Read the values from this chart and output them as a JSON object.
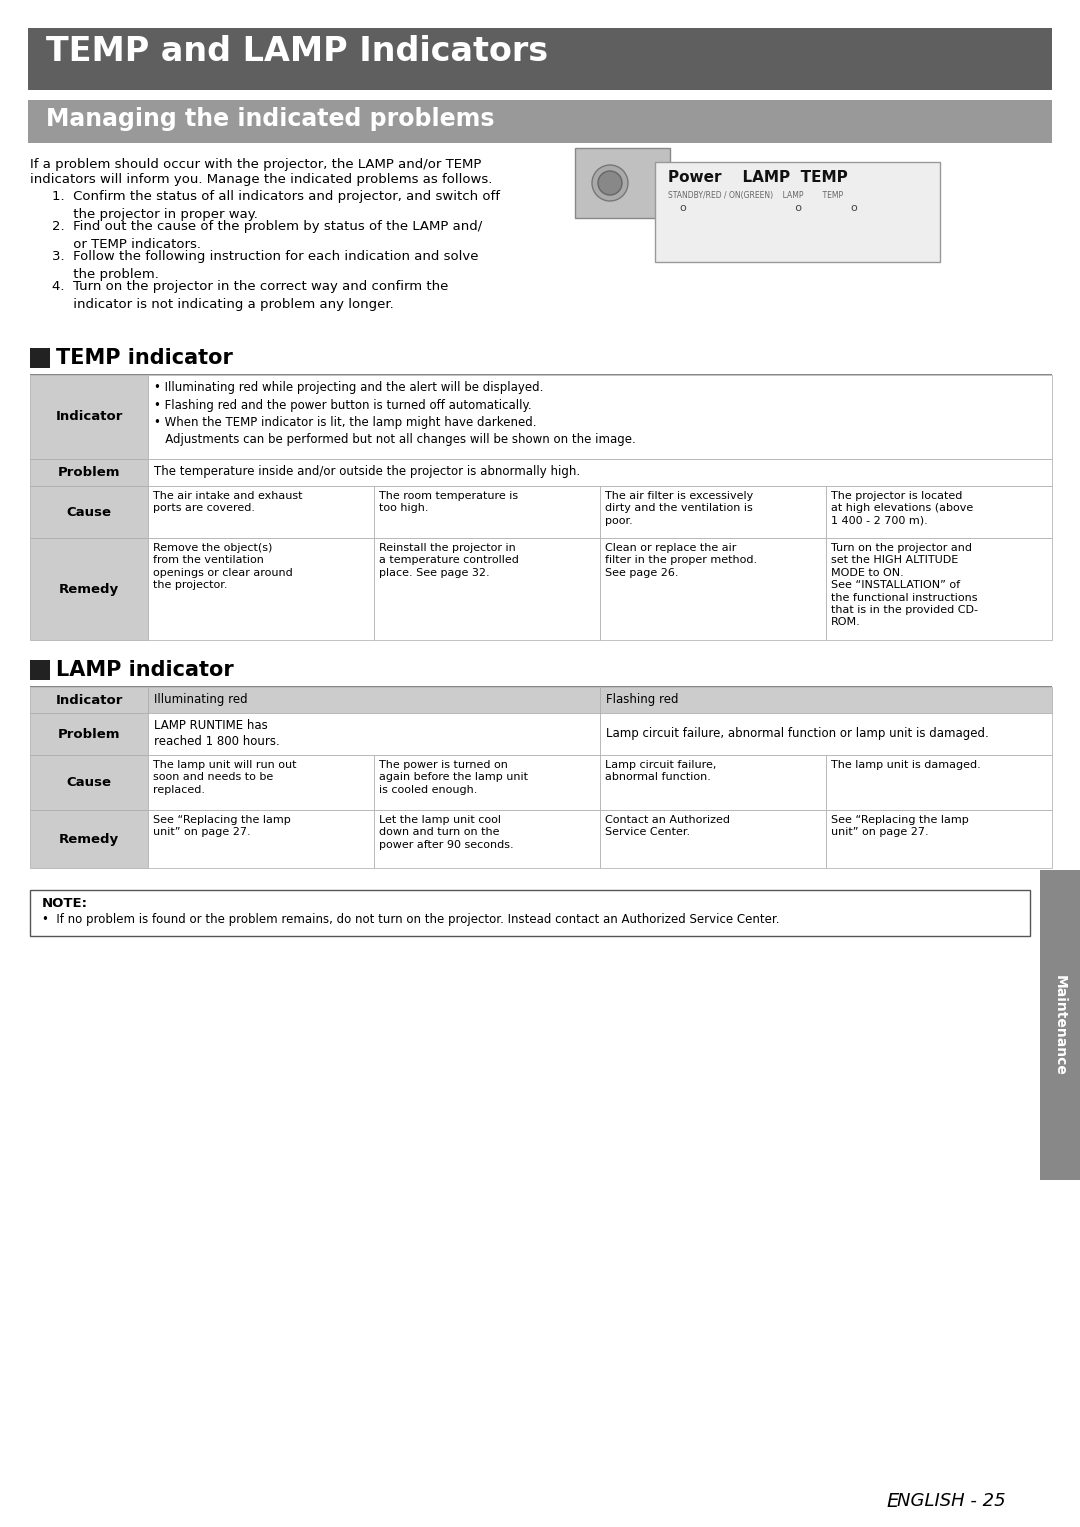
{
  "title": "TEMP and LAMP Indicators",
  "subtitle": "Managing the indicated problems",
  "intro_line1": "If a problem should occur with the projector, the LAMP and/or TEMP",
  "intro_line2": "indicators will inform you. Manage the indicated problems as follows.",
  "steps": [
    "1.  Confirm the status of all indicators and projector, and switch off\n     the projector in proper way.",
    "2.  Find out the cause of the problem by status of the LAMP and/\n     or TEMP indicators.",
    "3.  Follow the following instruction for each indication and solve\n     the problem.",
    "4.  Turn on the projector in the correct way and confirm the\n     indicator is not indicating a problem any longer."
  ],
  "temp_section_title": "TEMP indicator",
  "lamp_section_title": "LAMP indicator",
  "temp_indicator_text": "• Illuminating red while projecting and the alert will be displayed.\n• Flashing red and the power button is turned off automatically.\n• When the TEMP indicator is lit, the lamp might have darkened.\n   Adjustments can be performed but not all changes will be shown on the image.",
  "temp_problem_text": "The temperature inside and/or outside the projector is abnormally high.",
  "temp_cause": [
    "The air intake and exhaust\nports are covered.",
    "The room temperature is\ntoo high.",
    "The air filter is excessively\ndirty and the ventilation is\npoor.",
    "The projector is located\nat high elevations (above\n1 400 - 2 700 m)."
  ],
  "temp_remedy": [
    "Remove the object(s)\nfrom the ventilation\nopenings or clear around\nthe projector.",
    "Reinstall the projector in\na temperature controlled\nplace. See page 32.",
    "Clean or replace the air\nfilter in the proper method.\nSee page 26.",
    "Turn on the projector and\nset the HIGH ALTITUDE\nMODE to ON.\nSee “INSTALLATION” of\nthe functional instructions\nthat is in the provided CD-\nROM."
  ],
  "lamp_indicator": [
    "Illuminating red",
    "Flashing red"
  ],
  "lamp_problem_col1": "LAMP RUNTIME has\nreached 1 800 hours.",
  "lamp_problem_col2": "Lamp circuit failure, abnormal function or lamp unit is damaged.",
  "lamp_cause": [
    "The lamp unit will run out\nsoon and needs to be\nreplaced.",
    "The power is turned on\nagain before the lamp unit\nis cooled enough.",
    "Lamp circuit failure,\nabnormal function.",
    "The lamp unit is damaged."
  ],
  "lamp_remedy": [
    "See “Replacing the lamp\nunit” on page 27.",
    "Let the lamp unit cool\ndown and turn on the\npower after 90 seconds.",
    "Contact an Authorized\nService Center.",
    "See “Replacing the lamp\nunit” on page 27."
  ],
  "note_label": "NOTE:",
  "note_text": "•  If no problem is found or the problem remains, do not turn on the projector. Instead contact an Authorized Service Center.",
  "sidebar_text": "Maintenance",
  "footer_italic_e": "E",
  "footer_rest": "NGLISH - 25"
}
